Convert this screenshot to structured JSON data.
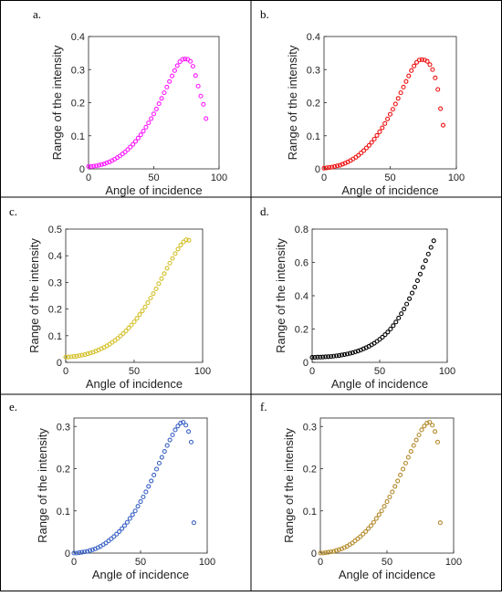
{
  "panels": [
    {
      "label": "a."
    },
    {
      "label": "b."
    },
    {
      "label": "c."
    },
    {
      "label": "d."
    },
    {
      "label": "e."
    },
    {
      "label": "f."
    }
  ],
  "chart_data": [
    {
      "type": "scatter",
      "title": "",
      "xlabel": "Angle of incidence",
      "ylabel": "Range of the intensity",
      "xlim": [
        0,
        100
      ],
      "ylim": [
        0,
        0.4
      ],
      "xticks": [
        0,
        50,
        100
      ],
      "yticks": [
        0,
        0.1,
        0.2,
        0.3,
        0.4
      ],
      "xticklabels": [
        "0",
        "50",
        "100"
      ],
      "yticklabels": [
        "0",
        "0.1",
        "0.2",
        "0.3",
        "0.4"
      ],
      "color": "#ff19ff",
      "grid": false,
      "x": [
        0,
        2,
        4,
        6,
        8,
        10,
        12,
        14,
        16,
        18,
        20,
        22,
        24,
        26,
        28,
        30,
        32,
        34,
        36,
        38,
        40,
        42,
        44,
        46,
        48,
        50,
        52,
        54,
        56,
        58,
        60,
        62,
        64,
        66,
        68,
        70,
        72,
        74,
        76,
        78,
        80,
        82,
        84,
        86,
        88,
        90
      ],
      "y": [
        0.007,
        0.007,
        0.008,
        0.009,
        0.011,
        0.013,
        0.015,
        0.018,
        0.021,
        0.025,
        0.029,
        0.034,
        0.039,
        0.045,
        0.051,
        0.058,
        0.066,
        0.074,
        0.083,
        0.093,
        0.103,
        0.114,
        0.126,
        0.139,
        0.152,
        0.166,
        0.181,
        0.197,
        0.213,
        0.23,
        0.247,
        0.264,
        0.281,
        0.297,
        0.312,
        0.324,
        0.331,
        0.332,
        0.331,
        0.325,
        0.31,
        0.282,
        0.25,
        0.22,
        0.195,
        0.152
      ]
    },
    {
      "type": "scatter",
      "title": "",
      "xlabel": "Angle of incidence",
      "ylabel": "Range of the intensity",
      "xlim": [
        0,
        100
      ],
      "ylim": [
        0,
        0.4
      ],
      "xticks": [
        0,
        50,
        100
      ],
      "yticks": [
        0,
        0.1,
        0.2,
        0.3,
        0.4
      ],
      "xticklabels": [
        "0",
        "50",
        "100"
      ],
      "yticklabels": [
        "0",
        "0.1",
        "0.2",
        "0.3",
        "0.4"
      ],
      "color": "#ee1111",
      "grid": false,
      "x": [
        0,
        2,
        4,
        6,
        8,
        10,
        12,
        14,
        16,
        18,
        20,
        22,
        24,
        26,
        28,
        30,
        32,
        34,
        36,
        38,
        40,
        42,
        44,
        46,
        48,
        50,
        52,
        54,
        56,
        58,
        60,
        62,
        64,
        66,
        68,
        70,
        72,
        74,
        76,
        78,
        80,
        82,
        84,
        86,
        88,
        90
      ],
      "y": [
        0.002,
        0.003,
        0.004,
        0.005,
        0.007,
        0.009,
        0.011,
        0.014,
        0.017,
        0.021,
        0.025,
        0.03,
        0.035,
        0.041,
        0.048,
        0.055,
        0.063,
        0.071,
        0.08,
        0.09,
        0.101,
        0.112,
        0.124,
        0.137,
        0.151,
        0.165,
        0.18,
        0.196,
        0.213,
        0.23,
        0.247,
        0.264,
        0.281,
        0.297,
        0.311,
        0.322,
        0.329,
        0.33,
        0.329,
        0.325,
        0.315,
        0.3,
        0.275,
        0.24,
        0.182,
        0.132
      ]
    },
    {
      "type": "scatter",
      "title": "",
      "xlabel": "Angle of incidence",
      "ylabel": "Range of the intensity",
      "xlim": [
        0,
        100
      ],
      "ylim": [
        0,
        0.5
      ],
      "xticks": [
        0,
        50,
        100
      ],
      "yticks": [
        0,
        0.1,
        0.2,
        0.3,
        0.4,
        0.5
      ],
      "xticklabels": [
        "0",
        "50",
        "100"
      ],
      "yticklabels": [
        "0",
        "0.1",
        "0.2",
        "0.3",
        "0.4",
        "0.5"
      ],
      "color": "#d4c028",
      "grid": false,
      "x": [
        0,
        2,
        4,
        6,
        8,
        10,
        12,
        14,
        16,
        18,
        20,
        22,
        24,
        26,
        28,
        30,
        32,
        34,
        36,
        38,
        40,
        42,
        44,
        46,
        48,
        50,
        52,
        54,
        56,
        58,
        60,
        62,
        64,
        66,
        68,
        70,
        72,
        74,
        76,
        78,
        80,
        82,
        84,
        86,
        88,
        90
      ],
      "y": [
        0.02,
        0.02,
        0.021,
        0.022,
        0.023,
        0.025,
        0.027,
        0.029,
        0.032,
        0.035,
        0.038,
        0.042,
        0.046,
        0.051,
        0.056,
        0.062,
        0.068,
        0.075,
        0.082,
        0.09,
        0.099,
        0.108,
        0.118,
        0.129,
        0.14,
        0.152,
        0.165,
        0.179,
        0.193,
        0.208,
        0.224,
        0.241,
        0.258,
        0.276,
        0.295,
        0.314,
        0.333,
        0.353,
        0.372,
        0.39,
        0.408,
        0.425,
        0.44,
        0.452,
        0.46,
        0.458
      ]
    },
    {
      "type": "scatter",
      "title": "",
      "xlabel": "Angle of incidence",
      "ylabel": "Range of the intensity",
      "xlim": [
        0,
        100
      ],
      "ylim": [
        0,
        0.8
      ],
      "xticks": [
        0,
        50,
        100
      ],
      "yticks": [
        0,
        0.2,
        0.4,
        0.6,
        0.8
      ],
      "xticklabels": [
        "0",
        "50",
        "100"
      ],
      "yticklabels": [
        "0",
        "0.2",
        "0.4",
        "0.6",
        "0.8"
      ],
      "color": "#000000",
      "grid": false,
      "x": [
        0,
        2,
        4,
        6,
        8,
        10,
        12,
        14,
        16,
        18,
        20,
        22,
        24,
        26,
        28,
        30,
        32,
        34,
        36,
        38,
        40,
        42,
        44,
        46,
        48,
        50,
        52,
        54,
        56,
        58,
        60,
        62,
        64,
        66,
        68,
        70,
        72,
        74,
        76,
        78,
        80,
        82,
        84,
        86,
        88,
        90
      ],
      "y": [
        0.03,
        0.03,
        0.031,
        0.031,
        0.032,
        0.033,
        0.034,
        0.035,
        0.037,
        0.039,
        0.041,
        0.044,
        0.047,
        0.05,
        0.054,
        0.058,
        0.063,
        0.068,
        0.074,
        0.081,
        0.088,
        0.096,
        0.105,
        0.115,
        0.126,
        0.138,
        0.151,
        0.166,
        0.182,
        0.2,
        0.22,
        0.242,
        0.266,
        0.292,
        0.32,
        0.35,
        0.382,
        0.416,
        0.452,
        0.49,
        0.53,
        0.57,
        0.61,
        0.65,
        0.69,
        0.73
      ]
    },
    {
      "type": "scatter",
      "title": "",
      "xlabel": "Angle of incidence",
      "ylabel": "Range of the intensity",
      "xlim": [
        0,
        100
      ],
      "ylim": [
        0,
        0.32
      ],
      "xticks": [
        0,
        50,
        100
      ],
      "yticks": [
        0,
        0.1,
        0.2,
        0.3
      ],
      "xticklabels": [
        "0",
        "50",
        "100"
      ],
      "yticklabels": [
        "0",
        "0.1",
        "0.2",
        "0.3"
      ],
      "color": "#3a62c4",
      "grid": false,
      "x": [
        0,
        2,
        4,
        6,
        8,
        10,
        12,
        14,
        16,
        18,
        20,
        22,
        24,
        26,
        28,
        30,
        32,
        34,
        36,
        38,
        40,
        42,
        44,
        46,
        48,
        50,
        52,
        54,
        56,
        58,
        60,
        62,
        64,
        66,
        68,
        70,
        72,
        74,
        76,
        78,
        80,
        82,
        84,
        86,
        88,
        90
      ],
      "y": [
        0.0,
        0.0,
        0.001,
        0.002,
        0.003,
        0.004,
        0.006,
        0.008,
        0.01,
        0.013,
        0.016,
        0.02,
        0.024,
        0.029,
        0.034,
        0.039,
        0.045,
        0.051,
        0.058,
        0.065,
        0.073,
        0.082,
        0.091,
        0.1,
        0.111,
        0.122,
        0.133,
        0.145,
        0.158,
        0.171,
        0.185,
        0.199,
        0.213,
        0.227,
        0.241,
        0.255,
        0.268,
        0.28,
        0.292,
        0.301,
        0.308,
        0.31,
        0.303,
        0.288,
        0.263,
        0.072
      ]
    },
    {
      "type": "scatter",
      "title": "",
      "xlabel": "Angle of incidence",
      "ylabel": "Range of the intensity",
      "xlim": [
        0,
        100
      ],
      "ylim": [
        0,
        0.32
      ],
      "xticks": [
        0,
        50,
        100
      ],
      "yticks": [
        0,
        0.1,
        0.2,
        0.3
      ],
      "xticklabels": [
        "0",
        "50",
        "100"
      ],
      "yticklabels": [
        "0",
        "0.1",
        "0.2",
        "0.3"
      ],
      "color": "#b48a2a",
      "grid": false,
      "x": [
        0,
        2,
        4,
        6,
        8,
        10,
        12,
        14,
        16,
        18,
        20,
        22,
        24,
        26,
        28,
        30,
        32,
        34,
        36,
        38,
        40,
        42,
        44,
        46,
        48,
        50,
        52,
        54,
        56,
        58,
        60,
        62,
        64,
        66,
        68,
        70,
        72,
        74,
        76,
        78,
        80,
        82,
        84,
        86,
        88,
        90
      ],
      "y": [
        0.0,
        0.0,
        0.001,
        0.002,
        0.003,
        0.004,
        0.006,
        0.008,
        0.01,
        0.013,
        0.016,
        0.02,
        0.024,
        0.029,
        0.034,
        0.039,
        0.045,
        0.051,
        0.058,
        0.065,
        0.073,
        0.082,
        0.091,
        0.1,
        0.111,
        0.122,
        0.133,
        0.145,
        0.158,
        0.171,
        0.185,
        0.199,
        0.213,
        0.227,
        0.241,
        0.255,
        0.268,
        0.28,
        0.292,
        0.301,
        0.308,
        0.31,
        0.303,
        0.288,
        0.263,
        0.072
      ]
    }
  ]
}
